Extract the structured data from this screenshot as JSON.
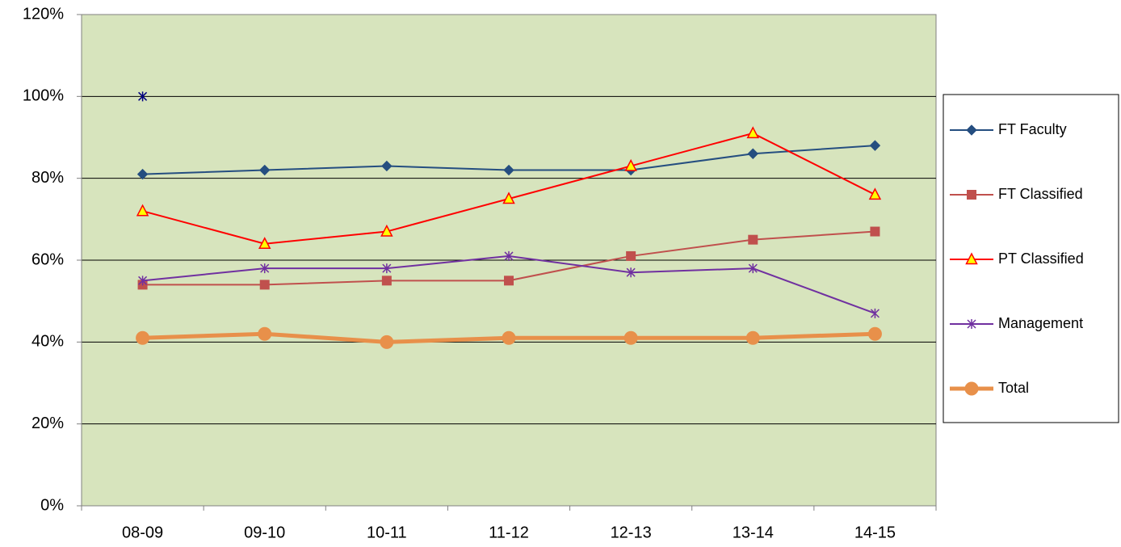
{
  "chart_data": {
    "type": "line",
    "categories": [
      "08-09",
      "09-10",
      "10-11",
      "11-12",
      "12-13",
      "13-14",
      "14-15"
    ],
    "ylim": [
      0,
      120
    ],
    "yticks": [
      {
        "value": 0,
        "label": "0%"
      },
      {
        "value": 20,
        "label": "20%"
      },
      {
        "value": 40,
        "label": "40%"
      },
      {
        "value": 60,
        "label": "60%"
      },
      {
        "value": 80,
        "label": "80%"
      },
      {
        "value": 100,
        "label": "100%"
      },
      {
        "value": 120,
        "label": "120%"
      }
    ],
    "grid": true,
    "legend": "right",
    "plot_background": "#d7e4bd",
    "series": [
      {
        "name": "FT Faculty",
        "color": "#254e80",
        "marker": "diamond",
        "values": [
          81,
          82,
          83,
          82,
          82,
          86,
          88
        ]
      },
      {
        "name": "FT Classified",
        "color": "#c0504d",
        "marker": "square",
        "values": [
          54,
          54,
          55,
          55,
          61,
          65,
          67
        ]
      },
      {
        "name": "PT Classified",
        "color": "#ff0000",
        "marker": "triangle",
        "values": [
          72,
          64,
          67,
          75,
          83,
          91,
          76
        ]
      },
      {
        "name": "Management",
        "color": "#7030a0",
        "marker": "asterisk",
        "values": [
          55,
          58,
          58,
          61,
          57,
          58,
          47
        ]
      },
      {
        "name": "Total",
        "color": "#e8904a",
        "marker": "circle",
        "width": 5,
        "values": [
          41,
          42,
          40,
          41,
          41,
          41,
          42
        ]
      },
      {
        "color": "#000080",
        "marker": "asterisk",
        "values": [
          100,
          null,
          null,
          null,
          null,
          null,
          null
        ]
      }
    ]
  }
}
